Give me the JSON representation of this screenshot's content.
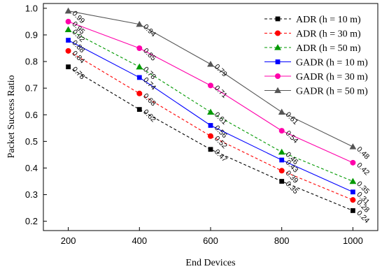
{
  "chart_data": {
    "type": "line",
    "xlabel": "End Devices",
    "ylabel": "Packet Success Ratio",
    "x": [
      200,
      400,
      600,
      800,
      1000
    ],
    "xticks": [
      "200",
      "400",
      "600",
      "800",
      "1000"
    ],
    "yticks": [
      "0.2",
      "0.3",
      "0.4",
      "0.5",
      "0.6",
      "0.7",
      "0.8",
      "0.9",
      "1.0"
    ],
    "xlim": [
      130,
      1070
    ],
    "ylim": [
      0.165,
      1.018
    ],
    "legend_position": "top-right",
    "grid": false,
    "series": [
      {
        "name": "ADR (h = 10 m)",
        "values": [
          0.78,
          0.62,
          0.47,
          0.35,
          0.24
        ],
        "labels": [
          "0.78",
          "0.62",
          "0.47",
          "0.35",
          "0.24"
        ],
        "color": "#000000",
        "dashed": true,
        "marker": "square"
      },
      {
        "name": "ADR (h = 30 m)",
        "values": [
          0.84,
          0.68,
          0.52,
          0.39,
          0.28
        ],
        "labels": [
          "0.84",
          "0.68",
          "0.52",
          "0.39",
          "0.28"
        ],
        "color": "#ff0000",
        "dashed": true,
        "marker": "circle"
      },
      {
        "name": "ADR (h = 50 m)",
        "values": [
          0.92,
          0.78,
          0.61,
          0.46,
          0.35
        ],
        "labels": [
          "0.92",
          "0.78",
          "0.61",
          "0.46",
          "0.35"
        ],
        "color": "#009900",
        "dashed": true,
        "marker": "triangle"
      },
      {
        "name": "GADR (h = 10 m)",
        "values": [
          0.88,
          0.74,
          0.56,
          0.43,
          0.31
        ],
        "labels": [
          "0.88",
          "0.74",
          "0.56",
          "0.43",
          "0.31"
        ],
        "color": "#0000ff",
        "dashed": false,
        "marker": "square"
      },
      {
        "name": "GADR (h = 30 m)",
        "values": [
          0.95,
          0.85,
          0.71,
          0.54,
          0.42
        ],
        "labels": [
          "0.95",
          "0.85",
          "0.71",
          "0.54",
          "0.42"
        ],
        "color": "#ff00aa",
        "dashed": false,
        "marker": "circle"
      },
      {
        "name": "GADR (h = 50 m)",
        "values": [
          0.99,
          0.94,
          0.79,
          0.61,
          0.48
        ],
        "labels": [
          "0.99",
          "0.94",
          "0.79",
          "0.61",
          "0.48"
        ],
        "color": "#555555",
        "dashed": false,
        "marker": "triangle"
      }
    ]
  }
}
